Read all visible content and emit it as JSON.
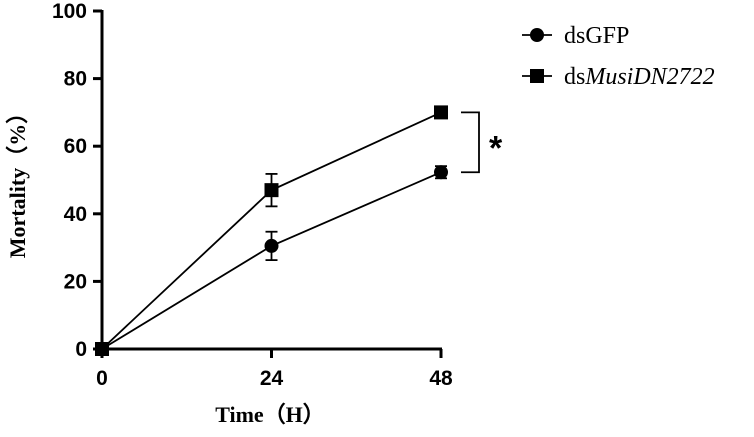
{
  "chart_data": {
    "type": "line",
    "x": [
      0,
      24,
      48
    ],
    "xticks": [
      "0",
      "24",
      "48"
    ],
    "yticks": [
      "0",
      "20",
      "40",
      "60",
      "80",
      "100"
    ],
    "xlabel": "Time（H）",
    "ylabel": "Mortality（%）",
    "xlim": [
      0,
      48
    ],
    "ylim": [
      0,
      100
    ],
    "grid": false,
    "legend_position": "top-right",
    "series": [
      {
        "name_prefix": "ds",
        "name_italic": "GFP",
        "italic": false,
        "marker": "circle",
        "values": [
          0,
          30.5,
          52.3
        ],
        "errors": [
          0,
          4.2,
          1.8
        ]
      },
      {
        "name_prefix": "ds",
        "name_italic": "MusiDN2722",
        "italic": true,
        "marker": "square",
        "values": [
          0,
          47,
          70
        ],
        "errors": [
          0,
          4.8,
          0
        ]
      }
    ],
    "annotations": [
      {
        "text": "*"
      }
    ]
  }
}
